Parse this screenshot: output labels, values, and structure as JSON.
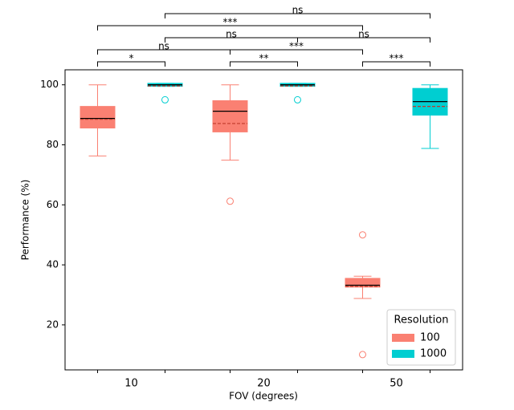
{
  "chart_data": {
    "type": "box",
    "xlabel": "FOV (degrees)",
    "ylabel": "Performance (%)",
    "categories": [
      "10",
      "20",
      "50"
    ],
    "ylim": [
      5,
      105
    ],
    "yticks": [
      20,
      40,
      60,
      80,
      100
    ],
    "legend_title": "Resolution",
    "legend": "lower right",
    "series": [
      {
        "name": "100",
        "color": "#fa8072",
        "boxes": [
          {
            "whislo": 76.3,
            "q1": 85.6,
            "med": 88.8,
            "mean": 88.5,
            "q3": 92.8,
            "whishi": 100,
            "fliers": []
          },
          {
            "whislo": 74.9,
            "q1": 84.3,
            "med": 91.2,
            "mean": 87.1,
            "q3": 94.7,
            "whishi": 100,
            "fliers": [
              61.2
            ]
          },
          {
            "whislo": 28.8,
            "q1": 32.6,
            "med": 33.2,
            "mean": 32.8,
            "q3": 35.5,
            "whishi": 36.2,
            "fliers": [
              50,
              10.1
            ]
          }
        ]
      },
      {
        "name": "1000",
        "color": "#00ced1",
        "boxes": [
          {
            "whislo": 99.5,
            "q1": 99.5,
            "med": 100,
            "mean": 99.6,
            "q3": 100.5,
            "whishi": 100.5,
            "fliers": [
              95
            ]
          },
          {
            "whislo": 99.5,
            "q1": 99.5,
            "med": 100,
            "mean": 99.6,
            "q3": 100.5,
            "whishi": 100.5,
            "fliers": [
              95
            ]
          },
          {
            "whislo": 78.8,
            "q1": 89.9,
            "med": 94.4,
            "mean": 92.8,
            "q3": 98.8,
            "whishi": 100,
            "fliers": []
          }
        ]
      }
    ],
    "significance": [
      {
        "a": [
          0,
          0
        ],
        "b": [
          0,
          1
        ],
        "label": "*"
      },
      {
        "a": [
          1,
          0
        ],
        "b": [
          1,
          1
        ],
        "label": "**"
      },
      {
        "a": [
          2,
          0
        ],
        "b": [
          2,
          1
        ],
        "label": "***"
      },
      {
        "a": [
          0,
          0
        ],
        "b": [
          1,
          0
        ],
        "label": "ns"
      },
      {
        "a": [
          1,
          0
        ],
        "b": [
          2,
          0
        ],
        "label": "***"
      },
      {
        "a": [
          0,
          1
        ],
        "b": [
          1,
          1
        ],
        "label": "ns"
      },
      {
        "a": [
          1,
          1
        ],
        "b": [
          2,
          1
        ],
        "label": "ns"
      },
      {
        "a": [
          0,
          0
        ],
        "b": [
          2,
          0
        ],
        "label": "***"
      },
      {
        "a": [
          0,
          1
        ],
        "b": [
          2,
          1
        ],
        "label": "ns"
      }
    ]
  }
}
